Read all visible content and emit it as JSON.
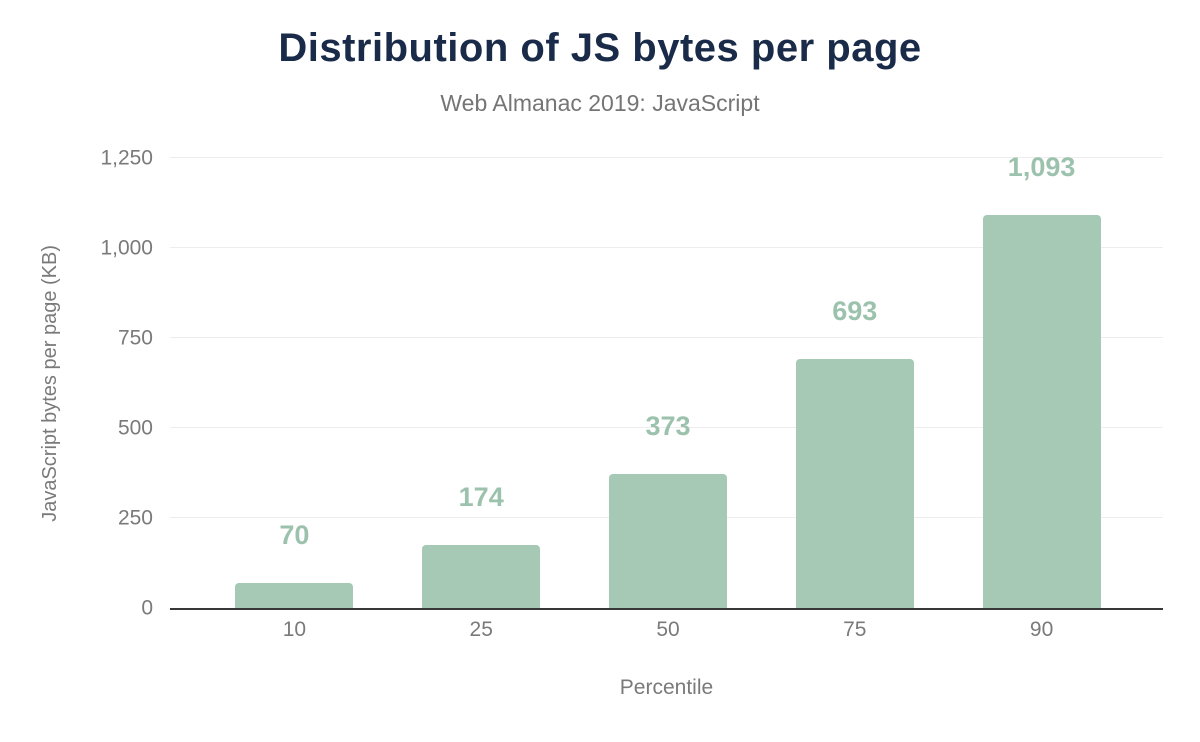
{
  "chart_data": {
    "type": "bar",
    "title": "Distribution of JS bytes per page",
    "subtitle": "Web Almanac 2019: JavaScript",
    "xlabel": "Percentile",
    "ylabel": "JavaScript bytes per page (KB)",
    "categories": [
      "10",
      "25",
      "50",
      "75",
      "90"
    ],
    "values": [
      70,
      174,
      373,
      693,
      1093
    ],
    "value_labels": [
      "70",
      "174",
      "373",
      "693",
      "1,093"
    ],
    "yticks": [
      0,
      250,
      500,
      750,
      1000,
      1250
    ],
    "ytick_labels": [
      "0",
      "250",
      "500",
      "750",
      "1,000",
      "1,250"
    ],
    "ylim": [
      0,
      1250
    ],
    "grid": true,
    "legend_position": "none",
    "colors": {
      "bar": "#a6c9b5",
      "value_label": "#9cc2ad",
      "title": "#1a2b49",
      "subtitle": "#757575",
      "axis_text": "#7a7a7a",
      "gridline": "#ededed",
      "axis_line": "#383838",
      "background": "#ffffff"
    }
  }
}
